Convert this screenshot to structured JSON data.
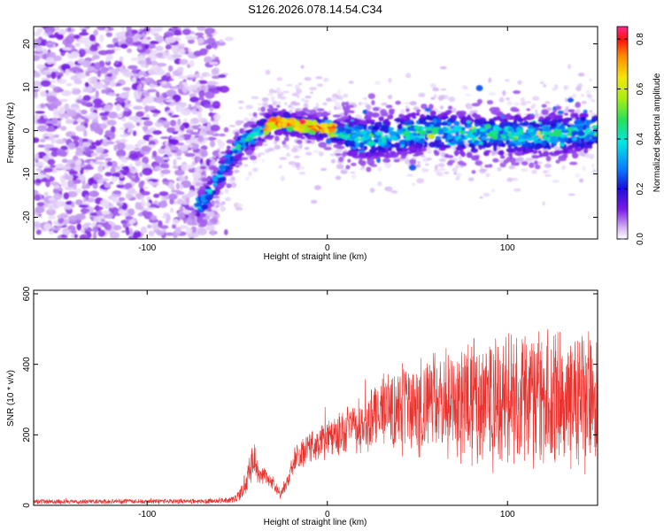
{
  "title": "S126.2026.078.14.54.C34",
  "colors": {
    "snr_line": "#e8322e",
    "axis": "#000000",
    "background": "#ffffff"
  },
  "chart_data": [
    {
      "type": "heatmap",
      "name": "spectrogram",
      "xlabel": "Height of straight line (km)",
      "ylabel": "Frequency (Hz)",
      "xlim": [
        -163,
        150
      ],
      "ylim": [
        -25,
        24
      ],
      "x_ticks": [
        -100,
        0,
        100
      ],
      "x_tick_labels": [
        "-100",
        "0",
        "100"
      ],
      "y_ticks": [
        -20,
        -10,
        0,
        10,
        20
      ],
      "y_tick_labels": [
        "-20",
        "-10",
        "0",
        "10",
        "20"
      ],
      "colorbar": {
        "label": "Normalized spectral amplitude",
        "range": [
          0.0,
          0.85
        ],
        "ticks": [
          0.0,
          0.2,
          0.4,
          0.6,
          0.8
        ],
        "tick_labels": [
          "0.0",
          "0.2",
          "0.4",
          "0.6",
          "0.8"
        ],
        "colormap": [
          "#ffffff",
          "#c39af0",
          "#7a1ae6",
          "#1a10d8",
          "#0a7cff",
          "#00e6e6",
          "#26e05a",
          "#a8ee14",
          "#f5e60a",
          "#ff8c00",
          "#ff1010",
          "#ff2a8c"
        ]
      },
      "ridge": {
        "description_units": "km vs Hz",
        "x": [
          -70,
          -62,
          -55,
          -48,
          -40,
          -33,
          -28,
          -20,
          -12,
          -5,
          0,
          10,
          20,
          40,
          60,
          80,
          100,
          120,
          150
        ],
        "y": [
          -17,
          -12,
          -7,
          -3,
          -1,
          1,
          2,
          1.5,
          1,
          0.5,
          0.5,
          -1,
          -2,
          -1,
          0,
          -1,
          -1,
          -1,
          0
        ]
      }
    },
    {
      "type": "line",
      "name": "snr",
      "xlabel": "Height of straight line (km)",
      "ylabel": "SNR (10 * v/v)",
      "xlim": [
        -163,
        150
      ],
      "ylim": [
        0,
        610
      ],
      "x_ticks": [
        -100,
        0,
        100
      ],
      "x_tick_labels": [
        "-100",
        "0",
        "100"
      ],
      "y_ticks": [
        0,
        200,
        400,
        600
      ],
      "y_tick_labels": [
        "0",
        "200",
        "400",
        "600"
      ],
      "envelope": {
        "x": [
          -163,
          -60,
          -50,
          -45,
          -42,
          -38,
          -34,
          -30,
          -26,
          -22,
          -18,
          -10,
          0,
          10,
          20,
          30,
          50,
          70,
          90,
          110,
          130,
          150
        ],
        "mean": [
          10,
          12,
          20,
          60,
          120,
          80,
          90,
          60,
          30,
          70,
          130,
          160,
          190,
          210,
          230,
          260,
          280,
          290,
          300,
          290,
          300,
          300
        ],
        "spread": [
          8,
          8,
          15,
          40,
          60,
          30,
          30,
          20,
          15,
          30,
          40,
          50,
          60,
          80,
          100,
          120,
          150,
          180,
          220,
          230,
          220,
          220
        ]
      },
      "color": "#e8322e"
    }
  ]
}
